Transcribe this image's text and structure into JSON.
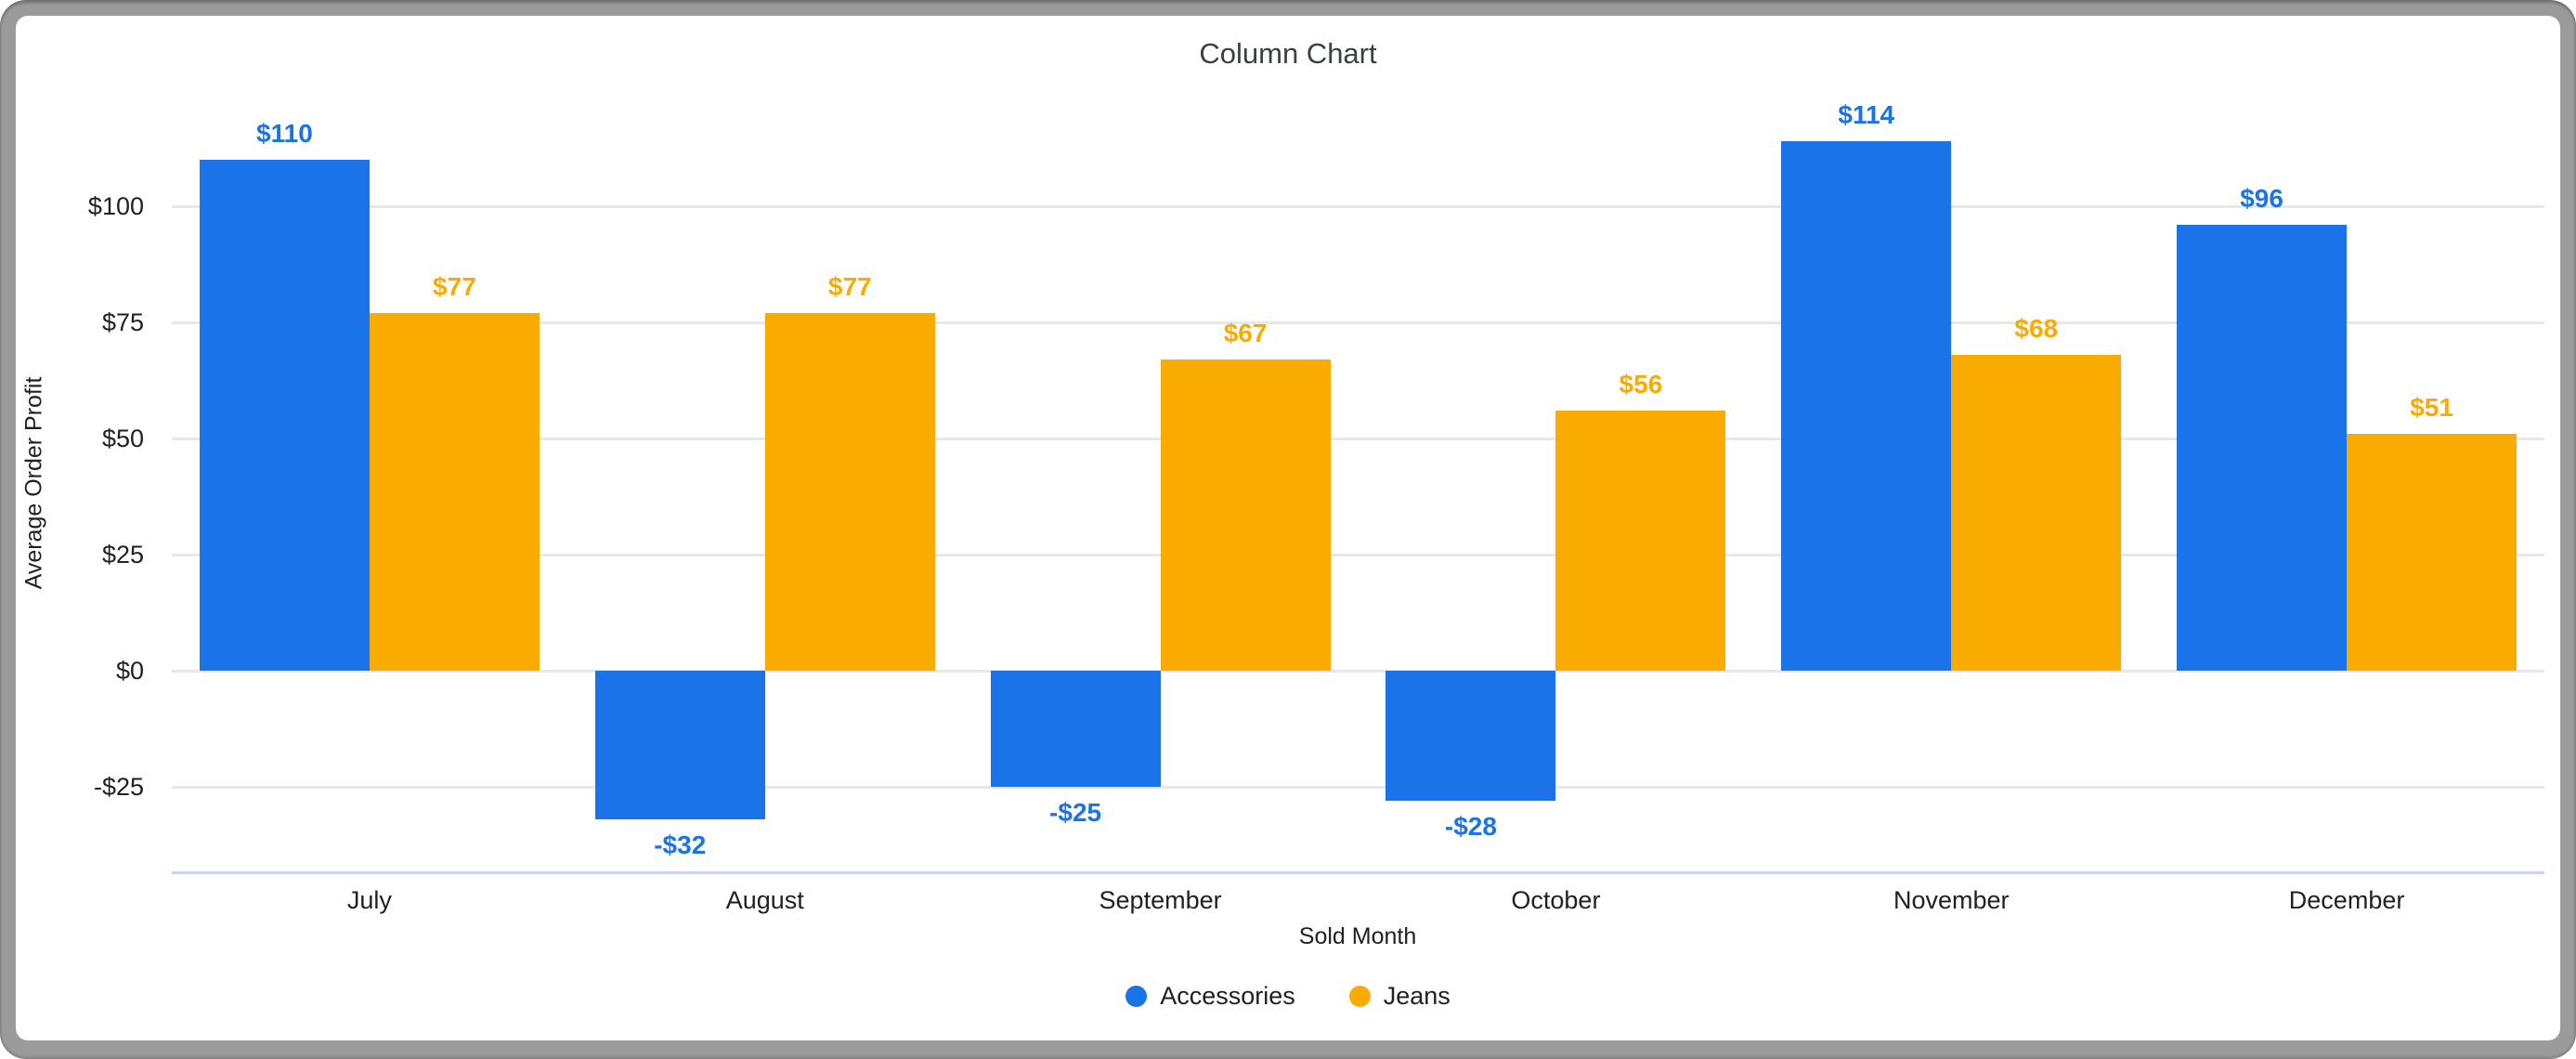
{
  "chart": {
    "title": "Column Chart"
  },
  "chart_data": {
    "type": "bar",
    "title": "Column Chart",
    "xlabel": "Sold Month",
    "ylabel": "Average Order Profit",
    "categories": [
      "July",
      "August",
      "September",
      "October",
      "November",
      "December"
    ],
    "series": [
      {
        "name": "Accessories",
        "color": "#1a73e8",
        "values": [
          110,
          -32,
          -25,
          -28,
          114,
          96
        ],
        "labels": [
          "$110",
          "-$32",
          "-$25",
          "-$28",
          "$114",
          "$96"
        ]
      },
      {
        "name": "Jeans",
        "color": "#f9ab00",
        "values": [
          77,
          77,
          67,
          56,
          68,
          51
        ],
        "labels": [
          "$77",
          "$77",
          "$67",
          "$56",
          "$68",
          "$51"
        ]
      }
    ],
    "yticks": [
      {
        "value": -25,
        "label": "-$25"
      },
      {
        "value": 0,
        "label": "$0"
      },
      {
        "value": 25,
        "label": "$25"
      },
      {
        "value": 50,
        "label": "$50"
      },
      {
        "value": 75,
        "label": "$75"
      },
      {
        "value": 100,
        "label": "$100"
      }
    ],
    "ylim": [
      -43.6,
      124.4
    ],
    "grid": true,
    "legend_position": "bottom",
    "colors": {
      "grid": "#e8e8e8",
      "axis_line": "#cbd4ee",
      "title_text": "#3c4043",
      "tick_text": "#202124",
      "frame": "#9b9b9b",
      "card_background": "#ffffff"
    }
  }
}
